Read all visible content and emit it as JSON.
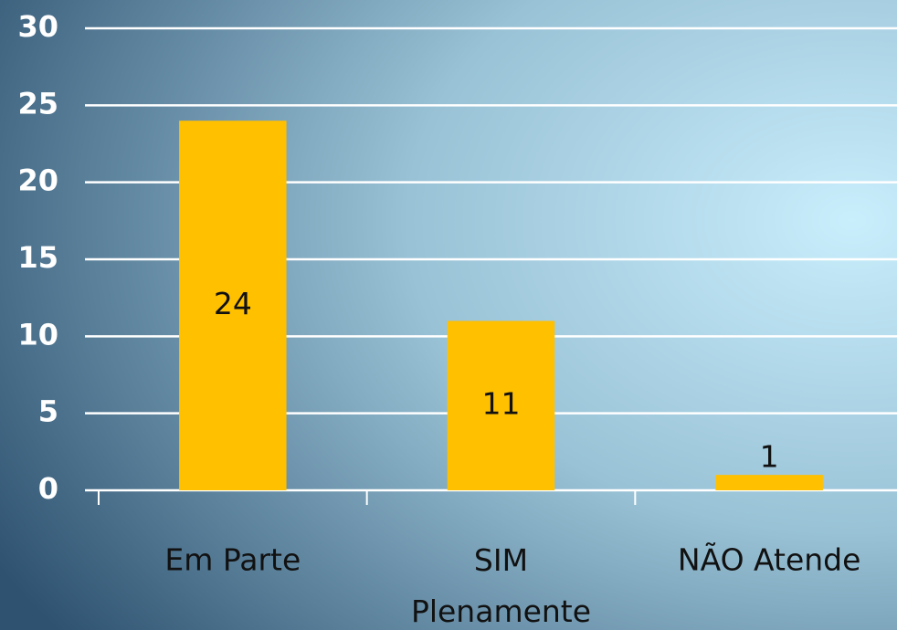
{
  "chart_data": {
    "type": "bar",
    "categories": [
      "Em Parte",
      "SIM Plenamente",
      "NÃO Atende"
    ],
    "values": [
      24,
      11,
      1
    ],
    "color": "#ffc000",
    "ylim": [
      0,
      30
    ],
    "yticks": [
      0,
      5,
      10,
      15,
      20,
      25,
      30
    ],
    "grid": true
  }
}
